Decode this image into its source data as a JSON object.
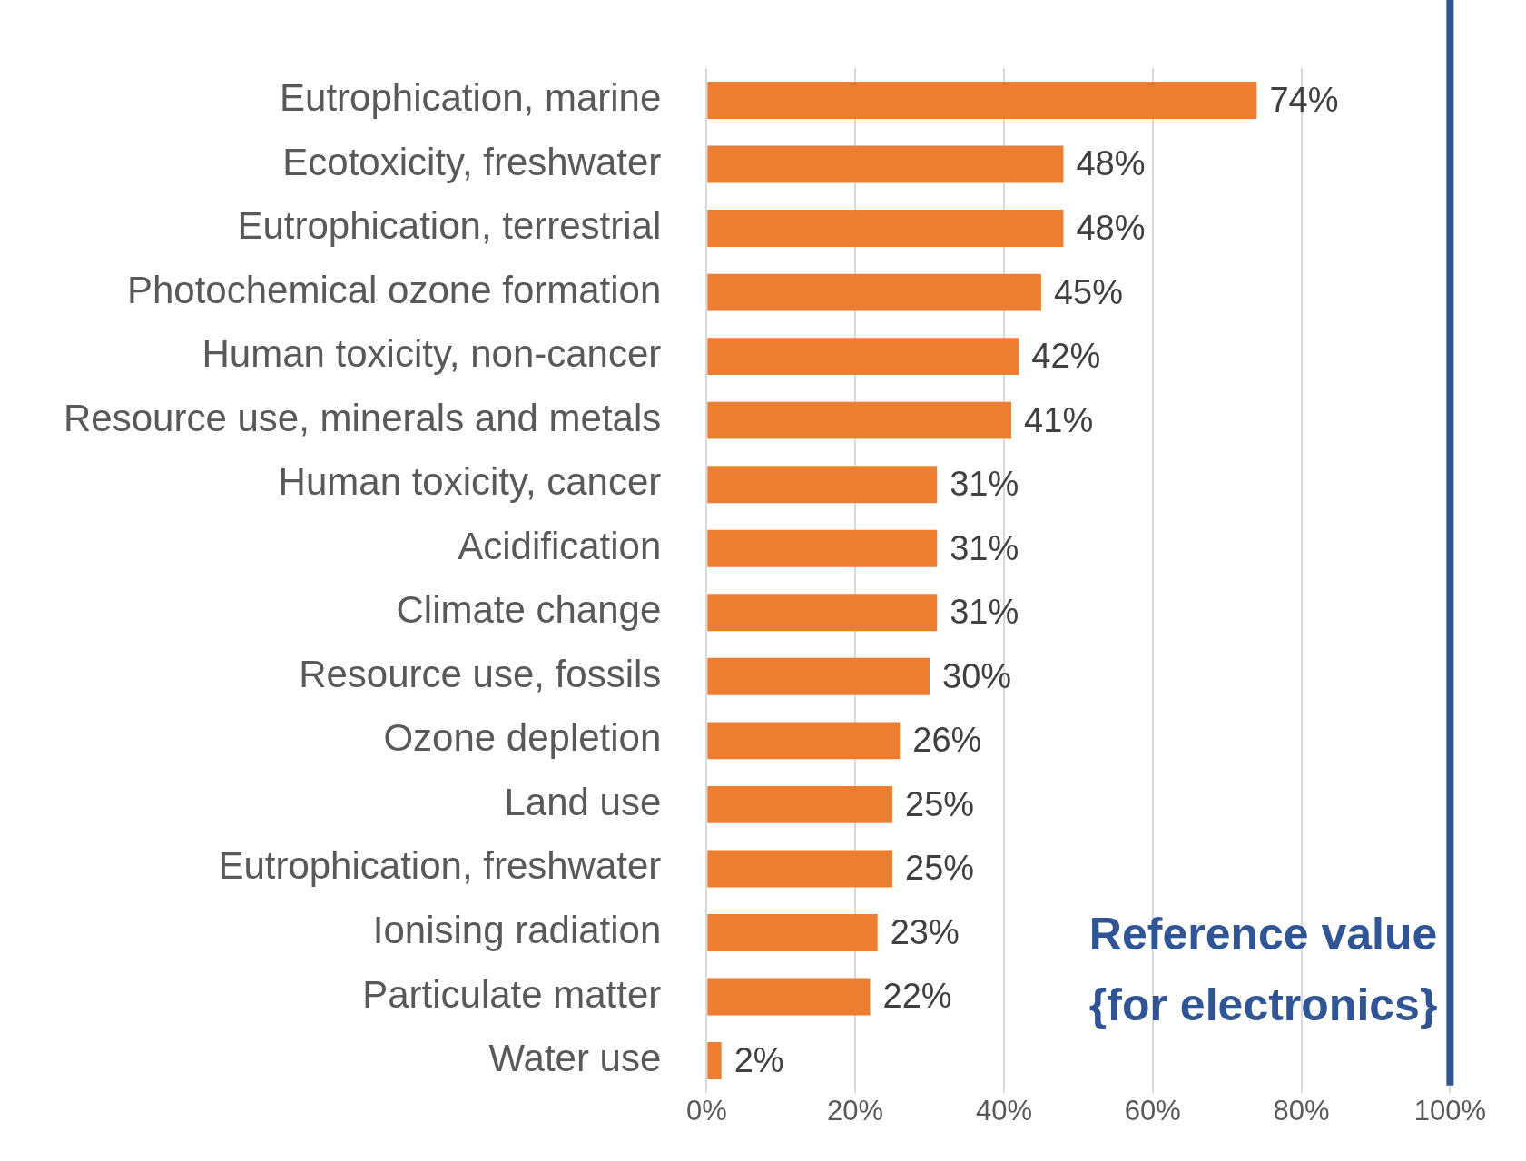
{
  "chart_data": {
    "type": "bar",
    "orientation": "horizontal",
    "categories": [
      "Eutrophication, marine",
      "Ecotoxicity, freshwater",
      "Eutrophication, terrestrial",
      "Photochemical ozone formation",
      "Human toxicity, non-cancer",
      "Resource use, minerals and metals",
      "Human toxicity, cancer",
      "Acidification",
      "Climate change",
      "Resource use, fossils",
      "Ozone depletion",
      "Land use",
      "Eutrophication, freshwater",
      "Ionising radiation",
      "Particulate matter",
      "Water use"
    ],
    "values": [
      74,
      48,
      48,
      45,
      42,
      41,
      31,
      31,
      31,
      30,
      26,
      25,
      25,
      23,
      22,
      2
    ],
    "value_labels": [
      "74%",
      "48%",
      "48%",
      "45%",
      "42%",
      "41%",
      "31%",
      "31%",
      "31%",
      "30%",
      "26%",
      "25%",
      "25%",
      "23%",
      "22%",
      "2%"
    ],
    "color": "#ed7d31",
    "xlim": [
      0,
      100
    ],
    "xticks": [
      {
        "value": 0,
        "label": "0%"
      },
      {
        "value": 20,
        "label": "20%"
      },
      {
        "value": 40,
        "label": "40%"
      },
      {
        "value": 60,
        "label": "60%"
      },
      {
        "value": 80,
        "label": "80%"
      },
      {
        "value": 100,
        "label": "100%"
      }
    ],
    "grid": "x",
    "legend": false,
    "ref_lines": [
      {
        "axis": "x",
        "value": 100,
        "label": "Reference value {for electronics}",
        "color": "#2f5597"
      }
    ]
  }
}
